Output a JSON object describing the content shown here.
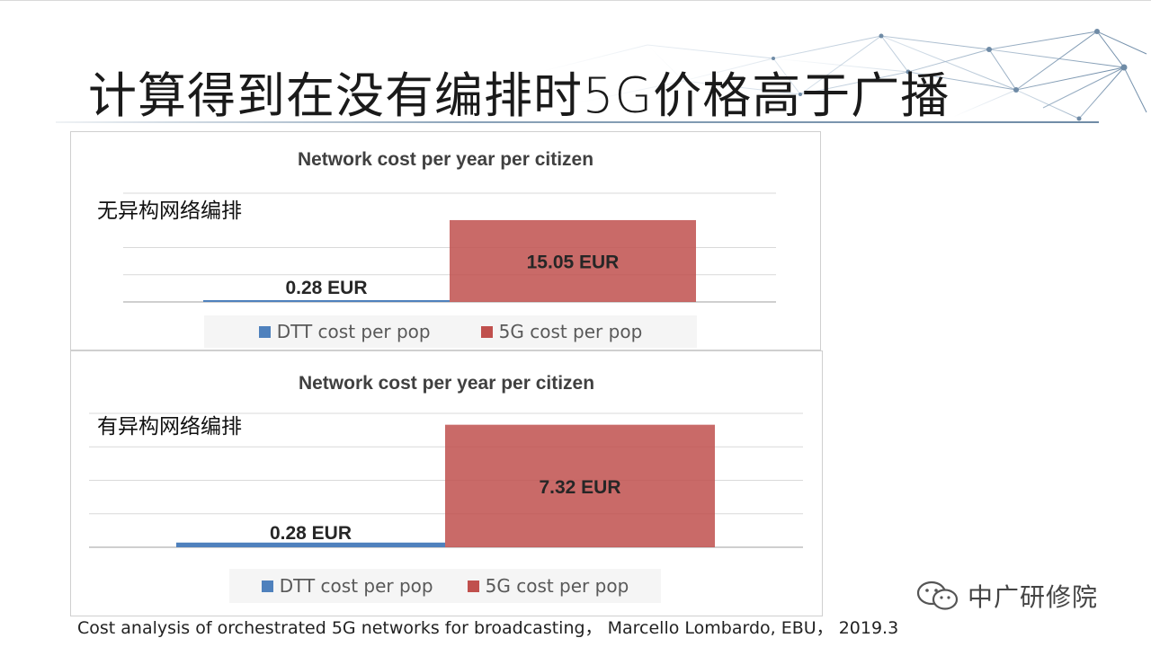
{
  "slide": {
    "title": "计算得到在没有编排时5G价格高于广播",
    "source": "Cost analysis of orchestrated 5G networks for broadcasting，  Marcello Lombardo, EBU，  2019.3",
    "brand": "中广研修院",
    "brand_icon": "wechat-icon"
  },
  "colors": {
    "dtt": "#4f81bd",
    "fiveg": "#c0504d",
    "grid": "#d9d9d9"
  },
  "chart_data": [
    {
      "type": "bar",
      "title": "Network cost per year per citizen",
      "annotation": "无异构网络编排",
      "categories": [
        "DTT cost per pop",
        "5G cost per pop"
      ],
      "values": [
        0.28,
        15.05
      ],
      "data_labels": [
        "0.28 EUR",
        "15.05 EUR"
      ],
      "legend": [
        "DTT cost per pop",
        "5G cost per pop"
      ],
      "legend_position": "bottom",
      "grid": true,
      "ylim": [
        0,
        20
      ]
    },
    {
      "type": "bar",
      "title": "Network cost per year per citizen",
      "annotation": "有异构网络编排",
      "categories": [
        "DTT cost per pop",
        "5G cost per pop"
      ],
      "values": [
        0.28,
        7.32
      ],
      "data_labels": [
        "0.28 EUR",
        "7.32 EUR"
      ],
      "legend": [
        "DTT cost per pop",
        "5G cost per pop"
      ],
      "legend_position": "bottom",
      "grid": true,
      "ylim": [
        0,
        8
      ]
    }
  ]
}
